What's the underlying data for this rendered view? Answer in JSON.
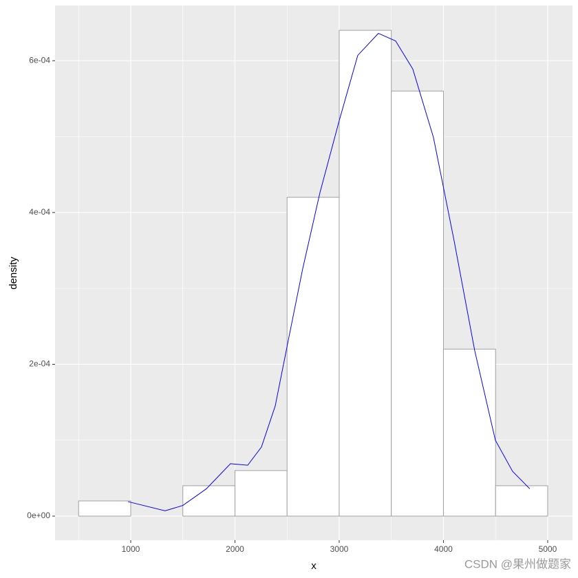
{
  "chart_data": {
    "type": "histogram",
    "x_label": "x",
    "y_label": "density",
    "bins": [
      500,
      1000,
      1500,
      2000,
      2500,
      3000,
      3500,
      4000,
      4500,
      5000
    ],
    "values": [
      2e-05,
      0,
      4e-05,
      6e-05,
      0.00042,
      0.00064,
      0.00056,
      0.00022,
      4e-05
    ],
    "bar_fill": "#ffffff",
    "bar_stroke": "#a0a0a0",
    "density_line": {
      "color": "#0000ff",
      "x": [
        975,
        1330,
        1500,
        1726,
        1957,
        2122,
        2254,
        2386,
        2518,
        2650,
        2815,
        3000,
        3178,
        3376,
        3541,
        3706,
        3904,
        4102,
        4300,
        4498,
        4663,
        4828
      ],
      "values": [
        1.9e-05,
        7e-06,
        1.4e-05,
        3.6e-05,
        6.9e-05,
        6.7e-05,
        9.1e-05,
        0.000145,
        0.000236,
        0.000326,
        0.000426,
        0.000521,
        0.000607,
        0.000636,
        0.000626,
        0.000589,
        0.000499,
        0.000363,
        0.000218,
        0.0001,
        5.9e-05,
        3.6e-05
      ]
    },
    "xlim": [
      274,
      5238
    ],
    "xticks": [
      1000,
      2000,
      3000,
      4000,
      5000
    ],
    "ylim": [
      -3.17e-05,
      0.0006727
    ],
    "yticks": [
      {
        "value": 0,
        "label": "0e+00"
      },
      {
        "value": 0.0002,
        "label": "2e-04"
      },
      {
        "value": 0.0004,
        "label": "4e-04"
      },
      {
        "value": 0.0006,
        "label": "6e-04"
      }
    ],
    "grid": true,
    "panel_color": "#ebebeb",
    "watermark": "CSDN @果州做题家"
  }
}
